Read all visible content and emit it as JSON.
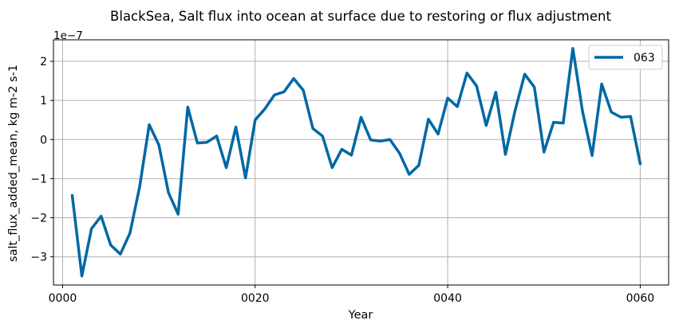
{
  "chart_data": {
    "type": "line",
    "title": "BlackSea, Salt flux into ocean at surface due to restoring or flux adjustment",
    "xlabel": "Year",
    "ylabel": "salt_flux_added_mean, kg m-2 s-1",
    "y_offset_label": "1e−7",
    "xlim": [
      -0.95,
      62.95
    ],
    "ylim": [
      -3.72,
      2.55
    ],
    "x_ticks": [
      0,
      20,
      40,
      60
    ],
    "x_tick_labels": [
      "0000",
      "0020",
      "0040",
      "0060"
    ],
    "y_ticks": [
      -3,
      -2,
      -1,
      0,
      1,
      2
    ],
    "y_tick_labels": [
      "−3",
      "−2",
      "−1",
      "0",
      "1",
      "2"
    ],
    "grid": true,
    "legend_position": "top-right",
    "series": [
      {
        "name": "063",
        "color": "#0068a5",
        "x": [
          1,
          2,
          3,
          4,
          5,
          6,
          7,
          8,
          9,
          10,
          11,
          12,
          13,
          14,
          15,
          16,
          17,
          18,
          19,
          20,
          21,
          22,
          23,
          24,
          25,
          26,
          27,
          28,
          29,
          30,
          31,
          32,
          33,
          34,
          35,
          36,
          37,
          38,
          39,
          40,
          41,
          42,
          43,
          44,
          45,
          46,
          47,
          48,
          49,
          50,
          51,
          52,
          53,
          54,
          55,
          56,
          57,
          58,
          59,
          60
        ],
        "values": [
          -1.43,
          -3.49,
          -2.28,
          -1.96,
          -2.7,
          -2.93,
          -2.39,
          -1.21,
          0.38,
          -0.14,
          -1.36,
          -1.91,
          0.83,
          -0.09,
          -0.07,
          0.09,
          -0.72,
          0.32,
          -0.98,
          0.5,
          0.78,
          1.14,
          1.22,
          1.56,
          1.26,
          0.28,
          0.09,
          -0.72,
          -0.25,
          -0.4,
          0.57,
          -0.01,
          -0.04,
          0.0,
          -0.35,
          -0.89,
          -0.66,
          0.52,
          0.14,
          1.06,
          0.84,
          1.7,
          1.37,
          0.36,
          1.21,
          -0.38,
          0.74,
          1.67,
          1.34,
          -0.32,
          0.44,
          0.42,
          2.33,
          0.73,
          -0.41,
          1.42,
          0.7,
          0.57,
          0.59,
          -0.62
        ]
      }
    ]
  }
}
